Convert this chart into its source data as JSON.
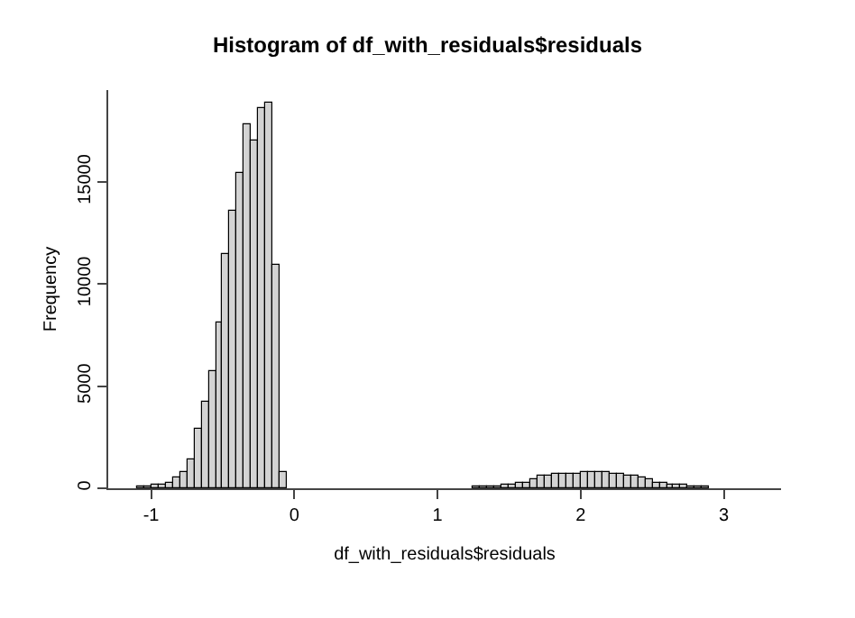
{
  "chart_data": {
    "type": "histogram",
    "title": "Histogram of df_with_residuals$residuals",
    "xlabel": "df_with_residuals$residuals",
    "ylabel": "Frequency",
    "bins": [
      -1.25,
      -1.2,
      -1.15,
      -1.1,
      -1.05,
      -1.0,
      -0.95,
      -0.9,
      -0.85,
      -0.8,
      -0.75,
      -0.7,
      -0.65,
      -0.6,
      -0.55,
      -0.5,
      -0.45,
      -0.4,
      -0.35,
      -0.3,
      -0.25,
      -0.2,
      -0.15,
      -0.1,
      -0.05,
      0.0,
      0.05,
      0.1,
      0.15,
      0.2,
      0.25,
      0.3,
      0.35,
      0.4,
      0.45,
      0.5,
      0.55,
      0.6,
      0.65,
      0.7,
      0.75,
      0.8,
      0.85,
      0.9,
      0.95,
      1.0,
      1.05,
      1.1,
      1.15,
      1.2,
      1.25,
      1.3,
      1.35,
      1.4,
      1.45,
      1.5,
      1.55,
      1.6,
      1.65,
      1.7,
      1.75,
      1.8,
      1.85,
      1.9,
      1.95,
      2.0,
      2.05,
      2.1,
      2.15,
      2.2,
      2.25,
      2.3,
      2.35,
      2.4,
      2.45,
      2.5,
      2.55,
      2.6,
      2.65,
      2.7,
      2.75,
      2.8,
      2.85,
      2.9,
      2.95,
      3.0,
      3.05,
      3.1,
      3.15,
      3.2,
      3.25,
      3.3,
      3.35
    ],
    "values": [
      0,
      0,
      0,
      100,
      100,
      200,
      200,
      300,
      500,
      800,
      1400,
      2900,
      4200,
      5700,
      8100,
      11500,
      13600,
      15400,
      17800,
      17000,
      18600,
      18900,
      10900,
      800,
      0,
      0,
      0,
      0,
      0,
      0,
      0,
      0,
      0,
      0,
      0,
      0,
      0,
      0,
      0,
      0,
      0,
      0,
      0,
      0,
      0,
      0,
      0,
      0,
      0,
      0,
      100,
      100,
      100,
      100,
      200,
      200,
      300,
      300,
      400,
      600,
      600,
      700,
      700,
      700,
      700,
      800,
      800,
      800,
      800,
      700,
      700,
      600,
      600,
      500,
      400,
      300,
      300,
      200,
      200,
      200,
      100,
      100,
      100,
      0,
      0,
      0,
      0,
      0,
      0,
      0,
      0,
      0
    ],
    "color": "#d3d3d3",
    "xlim": [
      -1.3,
      3.4
    ],
    "ylim": [
      0,
      19500
    ],
    "xticks": [
      -1,
      0,
      1,
      2,
      3
    ],
    "yticks": [
      0,
      5000,
      10000,
      15000
    ],
    "grid": false
  }
}
